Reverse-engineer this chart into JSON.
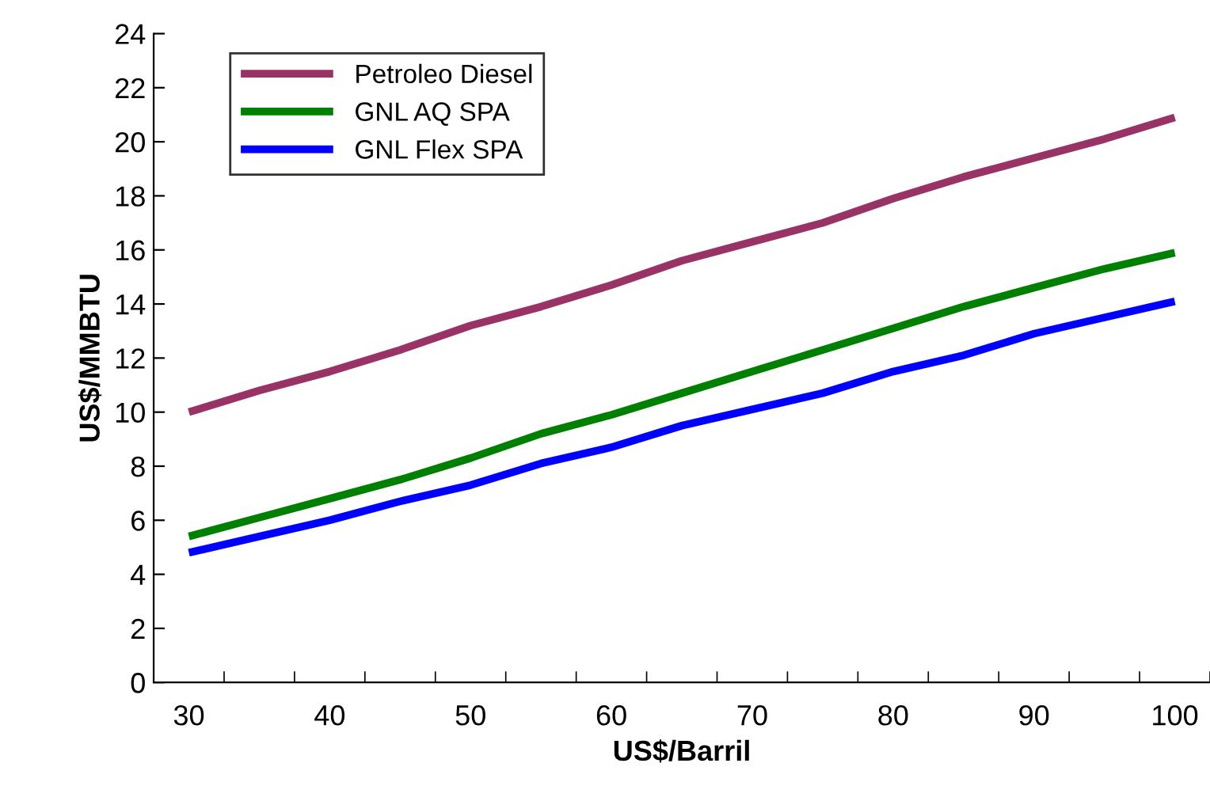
{
  "chart_data": {
    "type": "line",
    "xlabel": "US$/Barril",
    "ylabel": "US$/MMBTU",
    "x": [
      30,
      35,
      40,
      45,
      50,
      55,
      60,
      65,
      70,
      75,
      80,
      85,
      90,
      95,
      100
    ],
    "series": [
      {
        "name": "Petroleo Diesel",
        "color": "#993366",
        "values": [
          10.0,
          10.8,
          11.5,
          12.3,
          13.2,
          13.9,
          14.7,
          15.6,
          16.3,
          17.0,
          17.9,
          18.7,
          19.4,
          20.1,
          20.9
        ]
      },
      {
        "name": "GNL AQ SPA",
        "color": "#008000",
        "values": [
          5.4,
          6.1,
          6.8,
          7.5,
          8.3,
          9.2,
          9.9,
          10.7,
          11.5,
          12.3,
          13.1,
          13.9,
          14.6,
          15.3,
          15.9
        ]
      },
      {
        "name": "GNL Flex SPA",
        "color": "#0000ff",
        "values": [
          4.8,
          5.4,
          6.0,
          6.7,
          7.3,
          8.1,
          8.7,
          9.5,
          10.1,
          10.7,
          11.5,
          12.1,
          12.9,
          13.5,
          14.1
        ]
      }
    ],
    "xlim": [
      27.5,
      102.5
    ],
    "xticks": [
      30,
      40,
      50,
      60,
      70,
      80,
      90,
      100,
      {
        "value": 27.5,
        "label": null
      },
      {
        "value": 32.5,
        "label": null
      },
      {
        "value": 37.5,
        "label": null
      },
      {
        "value": 42.5,
        "label": null
      },
      {
        "value": 47.5,
        "label": null
      },
      {
        "value": 52.5,
        "label": null
      },
      {
        "value": 57.5,
        "label": null
      },
      {
        "value": 62.5,
        "label": null
      },
      {
        "value": 67.5,
        "label": null
      },
      {
        "value": 72.5,
        "label": null
      },
      {
        "value": 77.5,
        "label": null
      },
      {
        "value": 82.5,
        "label": null
      },
      {
        "value": 87.5,
        "label": null
      },
      {
        "value": 92.5,
        "label": null
      },
      {
        "value": 97.5,
        "label": null
      },
      {
        "value": 102.5,
        "label": null
      }
    ],
    "ylim": [
      0,
      24
    ],
    "yticks": [
      0,
      2,
      4,
      6,
      8,
      10,
      12,
      14,
      16,
      18,
      20,
      22,
      24
    ],
    "grid": false,
    "legend": "top left",
    "marker": "none",
    "line_style": "solid"
  }
}
